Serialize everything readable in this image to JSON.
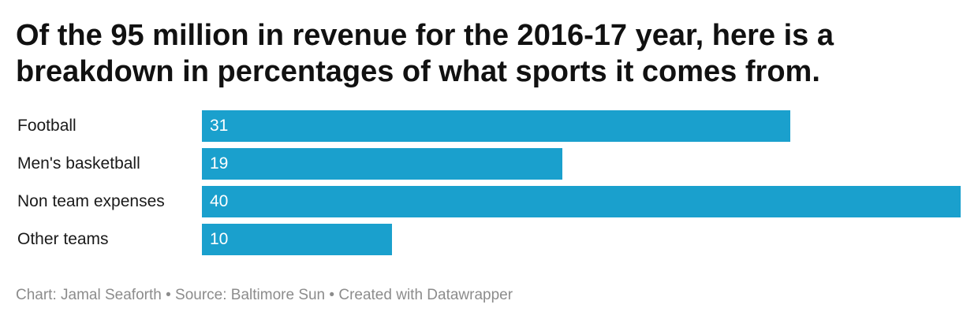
{
  "title": "Of the 95 million in revenue for the 2016-17 year, here is a breakdown in percentages of what sports it comes from.",
  "footer": {
    "chart_by": "Chart: Jamal Seaforth",
    "sep1": " • ",
    "source": "Source: Baltimore Sun",
    "sep2": " • ",
    "created_with": "Created with Datawrapper"
  },
  "colors": {
    "bar": "#1aa0cd",
    "text": "#1a1a1a",
    "footer": "#8c8c8c"
  },
  "chart_data": {
    "type": "bar",
    "orientation": "horizontal",
    "title": "Of the 95 million in revenue for the 2016-17 year, here is a breakdown in percentages of what sports it comes from.",
    "categories": [
      "Football",
      "Men's basketball",
      "Non team expenses",
      "Other teams"
    ],
    "values": [
      31,
      19,
      40,
      10
    ],
    "xlim": [
      0,
      40
    ],
    "grid": false,
    "legend": "none"
  }
}
